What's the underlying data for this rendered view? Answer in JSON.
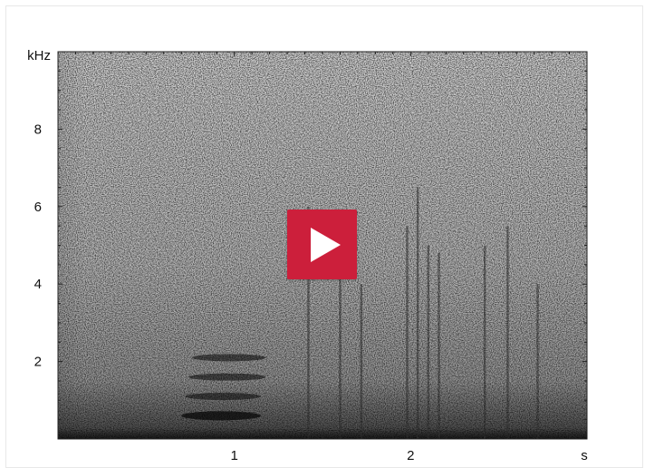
{
  "chart_data": {
    "type": "heatmap",
    "title": "",
    "x_unit": "s",
    "y_unit": "kHz",
    "xlim": [
      0,
      3.0
    ],
    "ylim": [
      0,
      10
    ],
    "x_ticks": [
      {
        "value": 1,
        "label": "1"
      },
      {
        "value": 2,
        "label": "2"
      }
    ],
    "y_ticks": [
      {
        "value": 2,
        "label": "2"
      },
      {
        "value": 4,
        "label": "4"
      },
      {
        "value": 6,
        "label": "6"
      },
      {
        "value": 8,
        "label": "8"
      }
    ],
    "colormap": "grayscale",
    "harmonic_bands": [
      {
        "t_start": 0.7,
        "t_end": 1.15,
        "freq_khz": 0.6
      },
      {
        "t_start": 0.72,
        "t_end": 1.15,
        "freq_khz": 1.1
      },
      {
        "t_start": 0.74,
        "t_end": 1.18,
        "freq_khz": 1.6
      },
      {
        "t_start": 0.76,
        "t_end": 1.18,
        "freq_khz": 2.1
      }
    ],
    "vertical_transients": [
      {
        "t": 1.42,
        "f_max_khz": 6.0
      },
      {
        "t": 1.6,
        "f_max_khz": 4.5
      },
      {
        "t": 1.72,
        "f_max_khz": 4.0
      },
      {
        "t": 1.98,
        "f_max_khz": 5.5
      },
      {
        "t": 2.04,
        "f_max_khz": 6.5
      },
      {
        "t": 2.1,
        "f_max_khz": 5.0
      },
      {
        "t": 2.16,
        "f_max_khz": 4.8
      },
      {
        "t": 2.42,
        "f_max_khz": 5.0
      },
      {
        "t": 2.55,
        "f_max_khz": 5.5
      },
      {
        "t": 2.72,
        "f_max_khz": 4.0
      }
    ]
  },
  "player": {
    "play_icon": "play-icon",
    "play_color": "#cc1f3b"
  }
}
